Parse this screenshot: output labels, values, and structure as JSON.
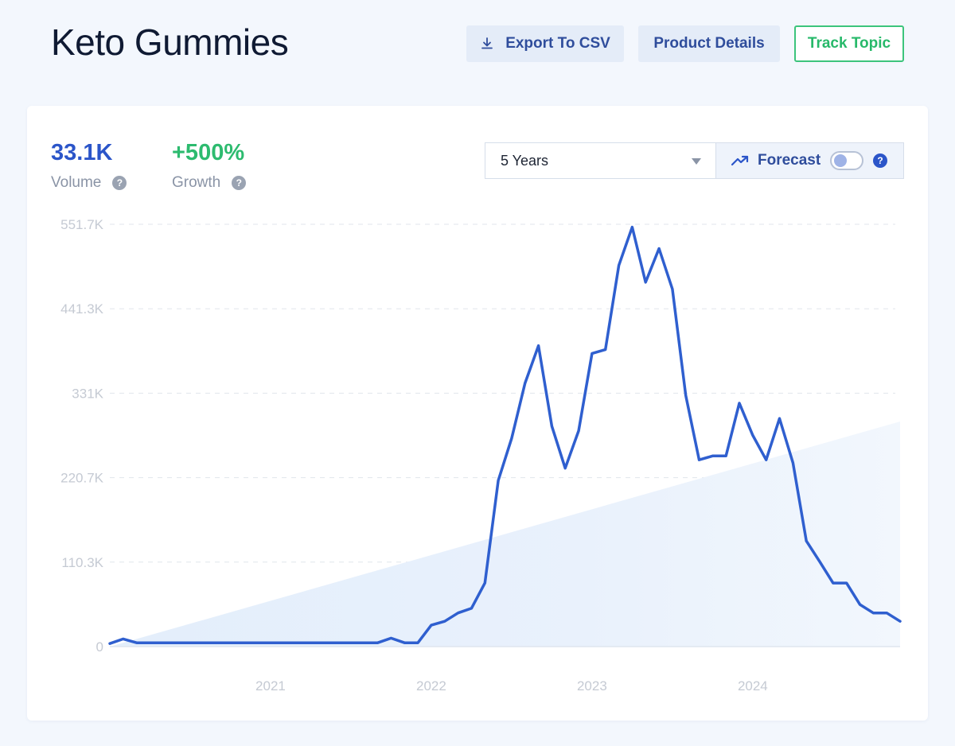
{
  "header": {
    "title": "Keto Gummies",
    "export_label": "Export To CSV",
    "details_label": "Product Details",
    "track_label": "Track Topic"
  },
  "stats": {
    "volume": {
      "value": "33.1K",
      "label": "Volume"
    },
    "growth": {
      "value": "+500%",
      "label": "Growth"
    }
  },
  "controls": {
    "range_selected": "5 Years",
    "forecast_label": "Forecast",
    "forecast_enabled": false,
    "help_glyph": "?"
  },
  "colors": {
    "accent": "#2b55c9",
    "line": "#2f5fcf",
    "growth": "#2dbb6f",
    "track_border": "#3cc47c",
    "trend_fill": "#e6f0fc"
  },
  "icons": {
    "export": "download-icon",
    "forecast": "trending-up-icon",
    "help": "question-circle-icon",
    "dropdown": "caret-down-icon"
  },
  "chart_data": {
    "type": "line",
    "title": "",
    "xlabel": "",
    "ylabel": "",
    "ylim": [
      0,
      551.7
    ],
    "yunit": "K",
    "y_ticks": [
      "0",
      "110.3K",
      "220.7K",
      "331K",
      "441.3K",
      "551.7K"
    ],
    "x_ticks": [
      "2021",
      "2022",
      "2023",
      "2024"
    ],
    "x_range": [
      "2020-01",
      "2024-12"
    ],
    "grid": "horizontal dashed",
    "series": [
      {
        "values": [
          4,
          10,
          5,
          5,
          5,
          5,
          5,
          5,
          5,
          5,
          5,
          5,
          5,
          5,
          5,
          5,
          5,
          5,
          5,
          5,
          5,
          11,
          5,
          5,
          28,
          33,
          44,
          50,
          83,
          217,
          272,
          344,
          393,
          288,
          233,
          282,
          383,
          388,
          498,
          548,
          476,
          520,
          467,
          328,
          244,
          249,
          249,
          318,
          276,
          244,
          298,
          240,
          138,
          111,
          83,
          83,
          55,
          44,
          44,
          33
        ]
      }
    ],
    "trend": {
      "start": 0,
      "end": 294
    }
  }
}
